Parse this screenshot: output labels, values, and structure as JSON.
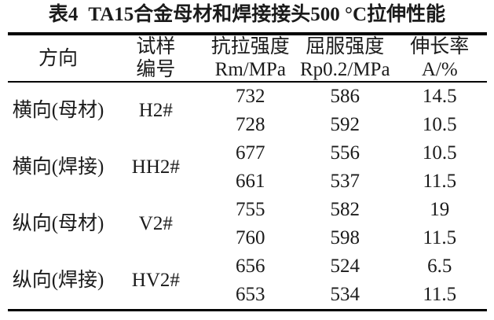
{
  "colors": {
    "background": "#ffffff",
    "text": "#1b1b1b",
    "rule": "#000000"
  },
  "table": {
    "label": "表4",
    "title": "TA15合金母材和焊接接头500 °C拉伸性能",
    "header": {
      "direction": "方向",
      "sample": [
        "试样",
        "编号"
      ],
      "tensile": [
        "抗拉强度",
        "Rm/MPa"
      ],
      "yield_strength": [
        "屈服强度",
        "Rp0.2/MPa"
      ],
      "elongation": [
        "伸长率",
        "A/%"
      ]
    },
    "groups": [
      {
        "direction": "横向(母材)",
        "sample": "H2#",
        "rows": [
          [
            "732",
            "586",
            "14.5"
          ],
          [
            "728",
            "592",
            "10.5"
          ]
        ]
      },
      {
        "direction": "横向(焊接)",
        "sample": "HH2#",
        "rows": [
          [
            "677",
            "556",
            "10.5"
          ],
          [
            "661",
            "537",
            "11.5"
          ]
        ]
      },
      {
        "direction": "纵向(母材)",
        "sample": "V2#",
        "rows": [
          [
            "755",
            "582",
            "19"
          ],
          [
            "760",
            "598",
            "11.5"
          ]
        ]
      },
      {
        "direction": "纵向(焊接)",
        "sample": "HV2#",
        "rows": [
          [
            "656",
            "524",
            "6.5"
          ],
          [
            "653",
            "534",
            "11.5"
          ]
        ]
      }
    ]
  }
}
